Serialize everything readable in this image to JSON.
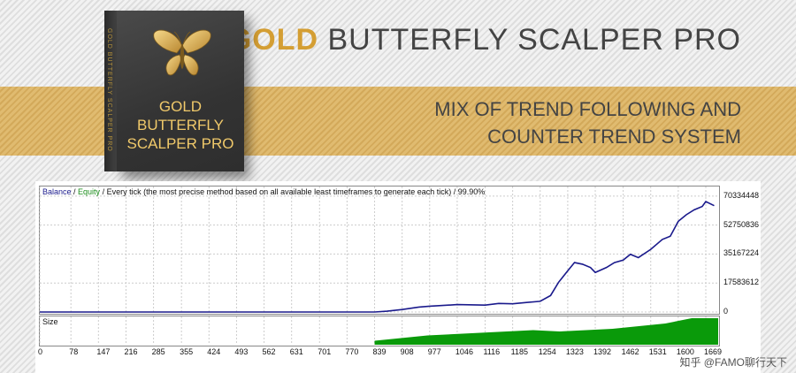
{
  "header": {
    "title_gold": "GOLD",
    "title_rest": " BUTTERFLY SCALPER PRO"
  },
  "band": {
    "line1": "MIX OF TREND FOLLOWING AND",
    "line2": "COUNTER TREND SYSTEM"
  },
  "product_box": {
    "side_text": "GOLD BUTTERFLY SCALPER PRO",
    "line1": "GOLD",
    "line2": "BUTTERFLY",
    "line3": "SCALPER PRO",
    "icon": "butterfly-icon"
  },
  "colors": {
    "gold": "#d49e33",
    "balance": "#1a1a8c",
    "equity": "#1a8c1a",
    "size": "#0a9a0a"
  },
  "watermark": "知乎 @FAMO聊行天下",
  "chart_data": {
    "type": "line",
    "legend": {
      "balance": "Balance",
      "sep1": " / ",
      "equity": "Equity",
      "rest": " / Every tick (the most precise method based on all available least timeframes to generate each tick) / 99.90%"
    },
    "size_panel_label": "Size",
    "y_ticks": [
      "70334448",
      "52750836",
      "35167224",
      "17583612",
      "0"
    ],
    "ylim": [
      0,
      74000000
    ],
    "x_ticks": [
      "0",
      "78",
      "147",
      "216",
      "285",
      "355",
      "424",
      "493",
      "562",
      "631",
      "701",
      "770",
      "839",
      "908",
      "977",
      "1046",
      "1116",
      "1185",
      "1254",
      "1323",
      "1392",
      "1462",
      "1531",
      "1600",
      "1669"
    ],
    "xlim": [
      0,
      1700
    ],
    "balance_series": {
      "x": [
        0,
        300,
        600,
        839,
        870,
        908,
        950,
        977,
        1046,
        1116,
        1150,
        1185,
        1220,
        1254,
        1280,
        1300,
        1323,
        1340,
        1360,
        1380,
        1392,
        1420,
        1440,
        1462,
        1480,
        1500,
        1531,
        1560,
        1580,
        1600,
        1620,
        1640,
        1660,
        1669,
        1690
      ],
      "y": [
        0,
        0,
        0,
        0,
        500000,
        1500000,
        3000000,
        3500000,
        4500000,
        4200000,
        5200000,
        5000000,
        5800000,
        6500000,
        10000000,
        18000000,
        25000000,
        30000000,
        29000000,
        27000000,
        24000000,
        27000000,
        30000000,
        31500000,
        35000000,
        33000000,
        38000000,
        44000000,
        46000000,
        55000000,
        59000000,
        62000000,
        64000000,
        67000000,
        64500000
      ]
    },
    "size_series": {
      "start_x": 839,
      "end_x": 1700,
      "level_fractions": [
        0.15,
        0.25,
        0.35,
        0.4,
        0.45,
        0.5,
        0.55,
        0.5,
        0.55,
        0.6,
        0.7,
        0.8,
        1.0,
        1.0
      ]
    }
  }
}
